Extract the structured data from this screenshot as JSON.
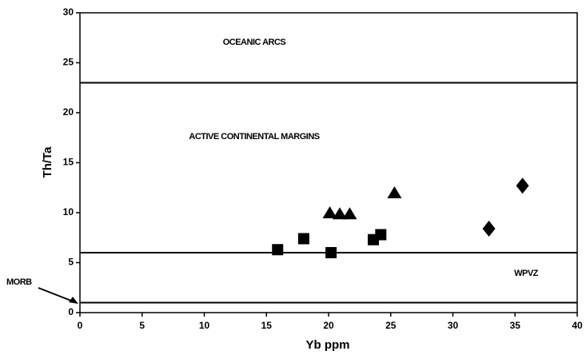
{
  "chart_data": {
    "type": "scatter",
    "xlabel": "Yb ppm",
    "ylabel": "Th/Ta",
    "xlim": [
      0,
      40
    ],
    "ylim": [
      0,
      30
    ],
    "xticks": [
      0,
      5,
      10,
      15,
      20,
      25,
      30,
      35,
      40
    ],
    "yticks": [
      0,
      5,
      10,
      15,
      20,
      25,
      30
    ],
    "hlines": [
      23,
      6,
      1
    ],
    "annotations": [
      "OCEANIC ARCS",
      "ACTIVE CONTINENTAL MARGINS",
      "WPVZ",
      "MORB"
    ],
    "series": [
      {
        "marker": "square",
        "color": "#000000",
        "x": [
          15.9,
          18.0,
          20.2,
          23.6,
          24.2
        ],
        "values": [
          6.3,
          7.4,
          6.0,
          7.3,
          7.8
        ]
      },
      {
        "marker": "triangle",
        "color": "#000000",
        "x": [
          20.1,
          20.9,
          21.7,
          25.3
        ],
        "values": [
          10.0,
          9.9,
          9.9,
          12.0
        ]
      },
      {
        "marker": "diamond",
        "color": "#000000",
        "x": [
          32.9,
          35.6
        ],
        "values": [
          8.4,
          12.7
        ]
      }
    ]
  }
}
